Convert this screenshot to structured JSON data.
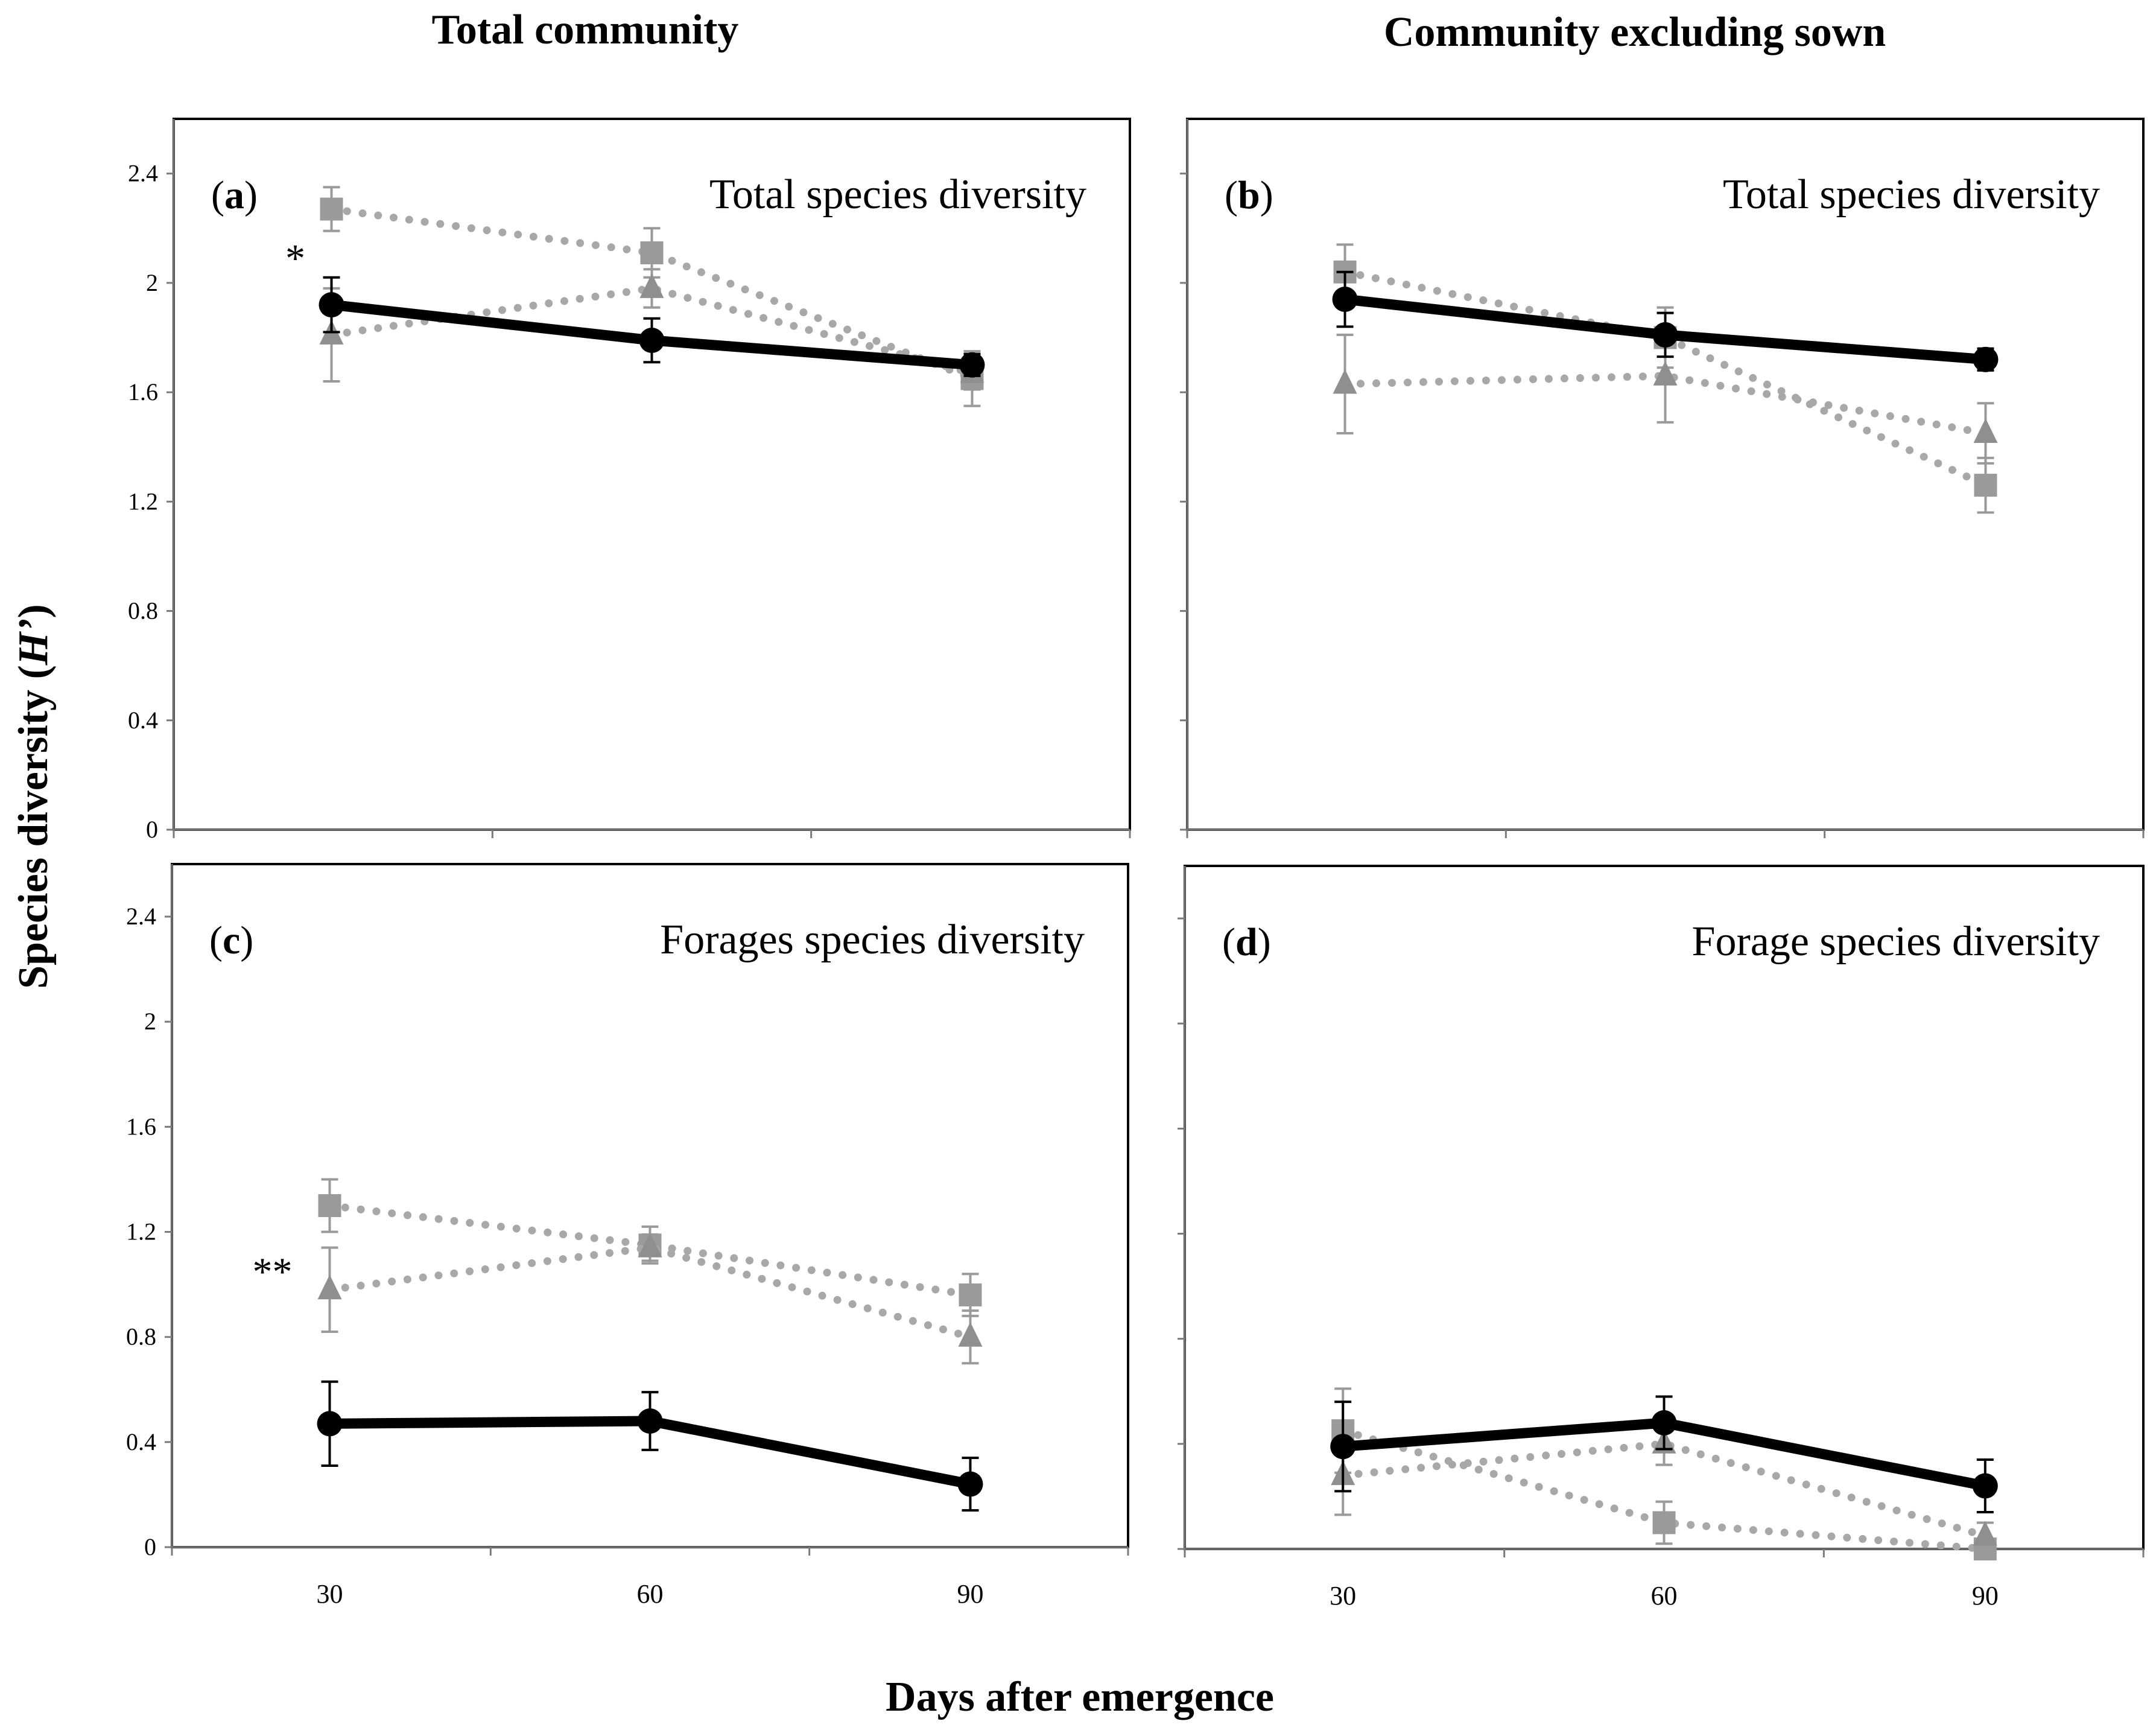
{
  "figure": {
    "column_titles": [
      "Total community",
      "Community excluding sown"
    ],
    "ylabel_main": "Species diversity (",
    "ylabel_italic": "H’",
    "ylabel_close": ")",
    "xlabel": "Days after emergence"
  },
  "colors": {
    "solid_series": "#000000",
    "square_series": "#9a9a9a",
    "triangle_series": "#8f8f8f"
  },
  "chart_data": [
    {
      "type": "line",
      "panel_label": "a",
      "title": "Total species diversity",
      "x": [
        30,
        60,
        90
      ],
      "ylim": [
        0,
        2.6
      ],
      "yticks": [
        "0",
        "0.4",
        "0.8",
        "1.2",
        "1.6",
        "2",
        "2.4"
      ],
      "xticks": [],
      "annotation": "*",
      "series": [
        {
          "name": "circle-solid",
          "marker": "circle",
          "values": [
            1.92,
            1.79,
            1.7
          ],
          "errors": [
            0.1,
            0.08,
            0.04
          ]
        },
        {
          "name": "square-dotted",
          "marker": "square",
          "values": [
            2.27,
            2.11,
            1.65
          ],
          "errors": [
            0.08,
            0.09,
            0.1
          ]
        },
        {
          "name": "triangle-dotted",
          "marker": "triangle",
          "values": [
            1.81,
            1.98,
            1.67
          ],
          "errors": [
            0.17,
            0.07,
            0.06
          ]
        }
      ]
    },
    {
      "type": "line",
      "panel_label": "b",
      "title": "Total species diversity",
      "x": [
        30,
        60,
        90
      ],
      "ylim": [
        0,
        2.6
      ],
      "yticks": [],
      "xticks": [],
      "annotation": "",
      "series": [
        {
          "name": "circle-solid",
          "marker": "circle",
          "values": [
            1.94,
            1.81,
            1.72
          ],
          "errors": [
            0.1,
            0.08,
            0.04
          ]
        },
        {
          "name": "square-dotted",
          "marker": "square",
          "values": [
            2.04,
            1.8,
            1.26
          ],
          "errors": [
            0.1,
            0.11,
            0.1
          ]
        },
        {
          "name": "triangle-dotted",
          "marker": "triangle",
          "values": [
            1.63,
            1.66,
            1.45
          ],
          "errors": [
            0.18,
            0.17,
            0.11
          ]
        }
      ]
    },
    {
      "type": "line",
      "panel_label": "c",
      "title": "Forages species diversity",
      "x": [
        30,
        60,
        90
      ],
      "ylim": [
        0,
        2.6
      ],
      "yticks": [
        "0",
        "0.4",
        "0.8",
        "1.2",
        "1.6",
        "2",
        "2.4"
      ],
      "xticks": [
        "30",
        "60",
        "90"
      ],
      "annotation": "**",
      "series": [
        {
          "name": "circle-solid",
          "marker": "circle",
          "values": [
            0.47,
            0.48,
            0.24
          ],
          "errors": [
            0.16,
            0.11,
            0.1
          ]
        },
        {
          "name": "square-dotted",
          "marker": "square",
          "values": [
            1.3,
            1.15,
            0.96
          ],
          "errors": [
            0.1,
            0.07,
            0.08
          ]
        },
        {
          "name": "triangle-dotted",
          "marker": "triangle",
          "values": [
            0.98,
            1.14,
            0.8
          ],
          "errors": [
            0.16,
            0.05,
            0.1
          ]
        }
      ]
    },
    {
      "type": "line",
      "panel_label": "d",
      "title": "Forage species diversity",
      "x": [
        30,
        60,
        90
      ],
      "ylim": [
        0,
        2.6
      ],
      "yticks": [],
      "xticks": [
        "30",
        "60",
        "90"
      ],
      "annotation": "",
      "series": [
        {
          "name": "circle-solid",
          "marker": "circle",
          "values": [
            0.39,
            0.48,
            0.24
          ],
          "errors": [
            0.17,
            0.1,
            0.1
          ]
        },
        {
          "name": "square-dotted",
          "marker": "square",
          "values": [
            0.45,
            0.1,
            0.0
          ],
          "errors": [
            0.16,
            0.08,
            0.03
          ]
        },
        {
          "name": "triangle-dotted",
          "marker": "triangle",
          "values": [
            0.28,
            0.4,
            0.05
          ],
          "errors": [
            0.15,
            0.08,
            0.05
          ]
        }
      ]
    }
  ]
}
